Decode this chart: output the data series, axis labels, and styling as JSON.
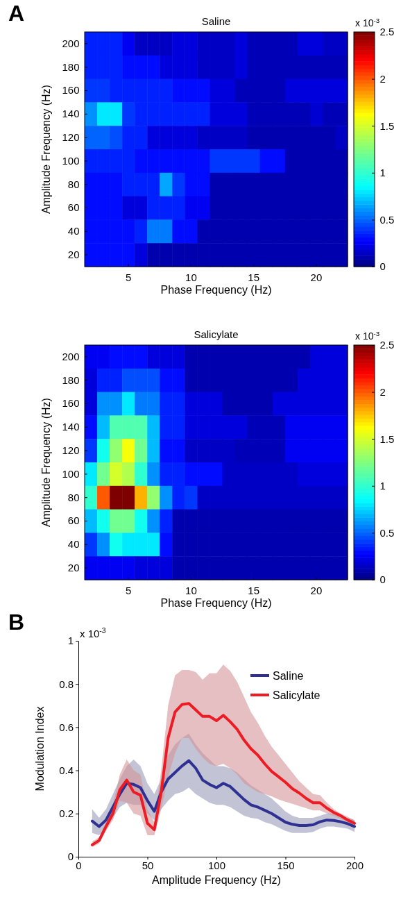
{
  "chart_data": [
    {
      "type": "heatmap",
      "title": "Saline",
      "xlabel": "Phase Frequency (Hz)",
      "ylabel": "Amplitude Frequency (Hz)",
      "clabel": "x 10$^{-3}$",
      "annotations": [
        "A"
      ],
      "categories": [
        null,
        null,
        null,
        "5",
        null,
        null,
        null,
        null,
        "10",
        null,
        null,
        null,
        null,
        "15",
        null,
        null,
        null,
        null,
        "20",
        null,
        null
      ],
      "y_categories": [
        "200",
        "180",
        "160",
        "140",
        "120",
        "100",
        "80",
        "60",
        "40",
        "20"
      ],
      "clim": [
        0,
        2.5
      ],
      "cticks": [
        0,
        0.5,
        1,
        1.5,
        2,
        2.5
      ],
      "cells": [
        [
          0.35,
          0.35,
          0.35,
          0.25,
          0.15,
          0.15,
          0.15,
          0.2,
          0.2,
          0.15,
          0.15,
          0.15,
          0.2,
          0.12,
          0.12,
          0.12,
          0.12,
          0.2,
          0.2,
          0.15,
          0.15
        ],
        [
          0.35,
          0.35,
          0.35,
          0.3,
          0.3,
          0.3,
          0.2,
          0.2,
          0.2,
          0.15,
          0.15,
          0.15,
          0.2,
          0.12,
          0.12,
          0.12,
          0.12,
          0.12,
          0.12,
          0.12,
          0.12
        ],
        [
          0.4,
          0.4,
          0.35,
          0.35,
          0.35,
          0.35,
          0.35,
          0.3,
          0.3,
          0.3,
          0.2,
          0.2,
          0.12,
          0.12,
          0.12,
          0.12,
          0.2,
          0.2,
          0.2,
          0.2,
          0.2
        ],
        [
          0.6,
          0.8,
          0.8,
          0.4,
          0.35,
          0.35,
          0.35,
          0.35,
          0.35,
          0.35,
          0.2,
          0.2,
          0.2,
          0.12,
          0.12,
          0.12,
          0.12,
          0.12,
          0.18,
          0.12,
          0.12
        ],
        [
          0.5,
          0.5,
          0.45,
          0.35,
          0.35,
          0.2,
          0.2,
          0.2,
          0.2,
          0.15,
          0.15,
          0.15,
          0.15,
          0.1,
          0.1,
          0.1,
          0.1,
          0.1,
          0.1,
          0.1,
          0.15
        ],
        [
          0.35,
          0.35,
          0.35,
          0.35,
          0.3,
          0.3,
          0.3,
          0.3,
          0.3,
          0.3,
          0.4,
          0.4,
          0.4,
          0.4,
          0.3,
          0.3,
          0.1,
          0.1,
          0.1,
          0.1,
          0.1
        ],
        [
          0.3,
          0.3,
          0.3,
          0.35,
          0.35,
          0.35,
          0.65,
          0.4,
          0.3,
          0.3,
          0.1,
          0.1,
          0.1,
          0.1,
          0.1,
          0.1,
          0.1,
          0.1,
          0.1,
          0.1,
          0.1
        ],
        [
          0.3,
          0.3,
          0.3,
          0.2,
          0.2,
          0.35,
          0.35,
          0.35,
          0.25,
          0.25,
          0.1,
          0.1,
          0.1,
          0.1,
          0.1,
          0.1,
          0.1,
          0.1,
          0.1,
          0.1,
          0.1
        ],
        [
          0.3,
          0.3,
          0.3,
          0.3,
          0.35,
          0.55,
          0.55,
          0.3,
          0.3,
          0.1,
          0.1,
          0.1,
          0.1,
          0.1,
          0.1,
          0.1,
          0.1,
          0.1,
          0.1,
          0.1,
          0.1
        ],
        [
          0.3,
          0.3,
          0.3,
          0.3,
          0.2,
          0.1,
          0.1,
          0.1,
          0.1,
          0.1,
          0.1,
          0.1,
          0.1,
          0.1,
          0.1,
          0.1,
          0.1,
          0.1,
          0.1,
          0.1,
          0.1
        ]
      ]
    },
    {
      "type": "heatmap",
      "title": "Salicylate",
      "xlabel": "Phase Frequency (Hz)",
      "ylabel": "Amplitude Frequency (Hz)",
      "clabel": "x 10$^{-3}$",
      "categories": [
        null,
        null,
        null,
        "5",
        null,
        null,
        null,
        null,
        "10",
        null,
        null,
        null,
        null,
        "15",
        null,
        null,
        null,
        null,
        "20",
        null,
        null
      ],
      "y_categories": [
        "200",
        "180",
        "160",
        "140",
        "120",
        "100",
        "80",
        "60",
        "40",
        "20"
      ],
      "clim": [
        0,
        2.5
      ],
      "cticks": [
        0,
        0.5,
        1,
        1.5,
        2,
        2.5
      ],
      "cells": [
        [
          0.25,
          0.25,
          0.3,
          0.3,
          0.3,
          0.2,
          0.2,
          0.2,
          0.1,
          0.1,
          0.1,
          0.1,
          0.1,
          0.1,
          0.1,
          0.1,
          0.1,
          0.1,
          0.2,
          0.2,
          0.2
        ],
        [
          0.2,
          0.35,
          0.35,
          0.45,
          0.45,
          0.45,
          0.3,
          0.3,
          0.1,
          0.1,
          0.1,
          0.1,
          0.1,
          0.1,
          0.1,
          0.1,
          0.1,
          0.2,
          0.2,
          0.2,
          0.2
        ],
        [
          0.2,
          0.6,
          0.6,
          0.8,
          0.55,
          0.55,
          0.35,
          0.35,
          0.2,
          0.2,
          0.2,
          0.1,
          0.1,
          0.1,
          0.1,
          0.2,
          0.2,
          0.2,
          0.2,
          0.2,
          0.2
        ],
        [
          0.3,
          0.7,
          1.1,
          1.1,
          1.1,
          0.7,
          0.35,
          0.35,
          0.2,
          0.2,
          0.2,
          0.2,
          0.2,
          0.12,
          0.12,
          0.12,
          0.25,
          0.25,
          0.25,
          0.25,
          0.25
        ],
        [
          0.4,
          0.9,
          1.3,
          1.6,
          1.2,
          0.7,
          0.3,
          0.3,
          0.15,
          0.15,
          0.15,
          0.15,
          0.12,
          0.12,
          0.12,
          0.12,
          0.25,
          0.25,
          0.25,
          0.25,
          0.25
        ],
        [
          0.8,
          1.2,
          1.5,
          1.4,
          1.0,
          0.6,
          0.35,
          0.35,
          0.3,
          0.3,
          0.3,
          0.15,
          0.15,
          0.15,
          0.15,
          0.15,
          0.15,
          0.2,
          0.2,
          0.2,
          0.2
        ],
        [
          1.0,
          2.0,
          2.5,
          2.5,
          1.8,
          1.3,
          0.6,
          0.35,
          0.4,
          0.15,
          0.15,
          0.15,
          0.15,
          0.15,
          0.15,
          0.15,
          0.15,
          0.15,
          0.15,
          0.15,
          0.15
        ],
        [
          0.7,
          0.9,
          1.2,
          1.2,
          0.9,
          0.6,
          0.35,
          0.1,
          0.1,
          0.1,
          0.1,
          0.1,
          0.1,
          0.1,
          0.1,
          0.1,
          0.1,
          0.1,
          0.1,
          0.1,
          0.1
        ],
        [
          0.4,
          0.6,
          0.9,
          0.8,
          0.8,
          0.8,
          0.3,
          0.1,
          0.1,
          0.1,
          0.1,
          0.1,
          0.1,
          0.1,
          0.1,
          0.1,
          0.1,
          0.1,
          0.1,
          0.1,
          0.1
        ],
        [
          0.25,
          0.25,
          0.25,
          0.25,
          0.2,
          0.2,
          0.2,
          0.1,
          0.1,
          0.1,
          0.1,
          0.1,
          0.1,
          0.1,
          0.1,
          0.1,
          0.1,
          0.1,
          0.1,
          0.1,
          0.1
        ]
      ]
    },
    {
      "type": "line",
      "xlabel": "Amplitude Frequency (Hz)",
      "ylabel": "Modulation Index",
      "annotations": [
        "B",
        "x 10$^{-3}$"
      ],
      "x": [
        10,
        15,
        20,
        25,
        30,
        35,
        40,
        45,
        50,
        55,
        60,
        65,
        70,
        75,
        80,
        85,
        90,
        95,
        100,
        105,
        110,
        115,
        120,
        125,
        130,
        135,
        140,
        145,
        150,
        155,
        160,
        165,
        170,
        175,
        180,
        185,
        190,
        195,
        200
      ],
      "xlim": [
        0,
        200
      ],
      "xticks": [
        0,
        50,
        100,
        150,
        200
      ],
      "ylim": [
        0,
        1
      ],
      "yticks": [
        0,
        0.2,
        0.4,
        0.6,
        0.8,
        1
      ],
      "legend": "top right",
      "series": [
        {
          "name": "Saline",
          "color": "#2e3192",
          "values": [
            0.165,
            0.14,
            0.17,
            0.23,
            0.29,
            0.34,
            0.335,
            0.32,
            0.26,
            0.21,
            0.3,
            0.36,
            0.39,
            0.42,
            0.445,
            0.41,
            0.355,
            0.335,
            0.32,
            0.34,
            0.325,
            0.295,
            0.265,
            0.24,
            0.23,
            0.215,
            0.2,
            0.18,
            0.16,
            0.15,
            0.145,
            0.145,
            0.148,
            0.162,
            0.17,
            0.168,
            0.162,
            0.153,
            0.14
          ],
          "lower": [
            0.11,
            0.1,
            0.13,
            0.18,
            0.23,
            0.25,
            0.24,
            0.24,
            0.2,
            0.17,
            0.22,
            0.26,
            0.29,
            0.3,
            0.32,
            0.29,
            0.27,
            0.25,
            0.24,
            0.24,
            0.23,
            0.21,
            0.19,
            0.18,
            0.175,
            0.16,
            0.15,
            0.135,
            0.12,
            0.11,
            0.11,
            0.11,
            0.115,
            0.13,
            0.14,
            0.14,
            0.135,
            0.13,
            0.115
          ],
          "upper": [
            0.22,
            0.18,
            0.22,
            0.29,
            0.36,
            0.42,
            0.45,
            0.42,
            0.34,
            0.29,
            0.36,
            0.47,
            0.52,
            0.55,
            0.57,
            0.52,
            0.48,
            0.45,
            0.42,
            0.42,
            0.41,
            0.39,
            0.36,
            0.33,
            0.31,
            0.29,
            0.27,
            0.24,
            0.21,
            0.19,
            0.18,
            0.18,
            0.18,
            0.19,
            0.2,
            0.2,
            0.19,
            0.18,
            0.17
          ]
        },
        {
          "name": "Salicylate",
          "color": "#ed1c24",
          "values": [
            0.055,
            0.075,
            0.14,
            0.2,
            0.31,
            0.355,
            0.3,
            0.285,
            0.155,
            0.125,
            0.3,
            0.55,
            0.67,
            0.705,
            0.71,
            0.68,
            0.65,
            0.65,
            0.63,
            0.655,
            0.625,
            0.59,
            0.54,
            0.5,
            0.47,
            0.43,
            0.395,
            0.37,
            0.345,
            0.315,
            0.295,
            0.27,
            0.25,
            0.25,
            0.225,
            0.205,
            0.19,
            0.17,
            0.155
          ],
          "lower": [
            0.045,
            0.06,
            0.12,
            0.17,
            0.26,
            0.25,
            0.2,
            0.19,
            0.1,
            0.1,
            0.22,
            0.37,
            0.48,
            0.55,
            0.55,
            0.5,
            0.46,
            0.43,
            0.42,
            0.43,
            0.41,
            0.38,
            0.34,
            0.32,
            0.3,
            0.29,
            0.28,
            0.265,
            0.255,
            0.245,
            0.235,
            0.225,
            0.215,
            0.215,
            0.2,
            0.19,
            0.175,
            0.16,
            0.145
          ],
          "upper": [
            0.07,
            0.09,
            0.16,
            0.24,
            0.38,
            0.45,
            0.4,
            0.38,
            0.22,
            0.16,
            0.4,
            0.7,
            0.84,
            0.865,
            0.865,
            0.855,
            0.82,
            0.85,
            0.85,
            0.89,
            0.86,
            0.81,
            0.74,
            0.67,
            0.62,
            0.56,
            0.51,
            0.47,
            0.43,
            0.39,
            0.35,
            0.32,
            0.29,
            0.285,
            0.25,
            0.22,
            0.2,
            0.185,
            0.17
          ]
        }
      ]
    }
  ]
}
